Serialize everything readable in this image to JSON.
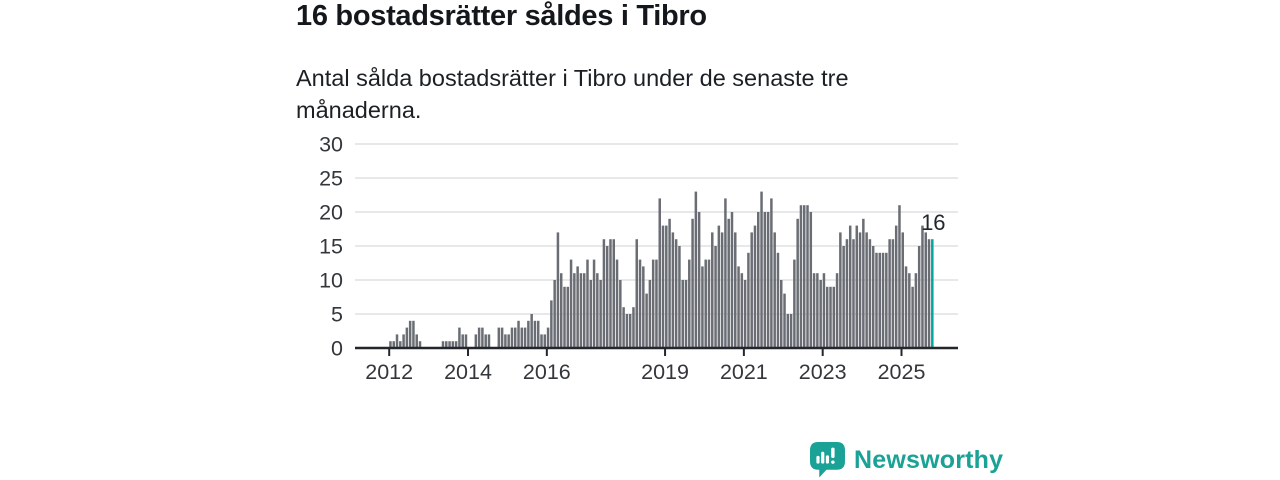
{
  "header": {
    "title": "16 bostadsrätter såldes i Tibro",
    "subtitle": "Antal sålda bostadsrätter i Tibro under de senaste tre månaderna."
  },
  "chart_data": {
    "type": "bar",
    "title": "16 bostadsrätter såldes i Tibro",
    "xlabel": "",
    "ylabel": "",
    "ylim": [
      0,
      30
    ],
    "y_ticks": [
      0,
      5,
      10,
      15,
      20,
      25,
      30
    ],
    "x_tick_labels": [
      "2012",
      "2014",
      "2016",
      "2019",
      "2021",
      "2023",
      "2025"
    ],
    "grid": true,
    "legend": "none",
    "start_month": "2011-04",
    "end_month": "2025-10",
    "values": [
      0,
      0,
      0,
      0,
      0,
      0,
      0,
      0,
      0,
      1,
      1,
      2,
      1,
      2,
      3,
      4,
      4,
      2,
      1,
      0,
      0,
      0,
      0,
      0,
      0,
      1,
      1,
      1,
      1,
      1,
      3,
      2,
      2,
      0,
      0,
      2,
      3,
      3,
      2,
      2,
      0,
      0,
      3,
      3,
      2,
      2,
      3,
      3,
      4,
      3,
      3,
      4,
      5,
      4,
      4,
      2,
      2,
      3,
      7,
      10,
      17,
      11,
      9,
      9,
      13,
      11,
      12,
      11,
      11,
      13,
      10,
      13,
      11,
      10,
      16,
      15,
      16,
      16,
      13,
      10,
      6,
      5,
      5,
      6,
      16,
      13,
      12,
      8,
      10,
      13,
      13,
      22,
      18,
      18,
      19,
      17,
      16,
      15,
      10,
      10,
      13,
      19,
      23,
      20,
      12,
      13,
      13,
      17,
      15,
      18,
      17,
      22,
      19,
      20,
      17,
      12,
      11,
      10,
      14,
      17,
      18,
      20,
      23,
      20,
      20,
      22,
      17,
      14,
      10,
      8,
      5,
      5,
      13,
      19,
      21,
      21,
      21,
      20,
      11,
      11,
      10,
      11,
      9,
      9,
      9,
      11,
      17,
      15,
      16,
      18,
      16,
      18,
      17,
      19,
      17,
      16,
      15,
      14,
      14,
      14,
      14,
      16,
      16,
      18,
      21,
      17,
      12,
      11,
      9,
      11,
      15,
      18,
      17,
      16,
      16
    ],
    "highlight": {
      "index": 174,
      "value": 16,
      "label": "16"
    }
  },
  "colors": {
    "bar": "#6a6e74",
    "highlight": "#00a79f",
    "grid": "#d9dbdd",
    "axis": "#23272d",
    "tick_text": "#33373c",
    "annotation_text": "#23272d",
    "brand": "#19a295"
  },
  "footer": {
    "brand": "Newsworthy",
    "logo_icon": "newsworthy-speech-bubble-chart-icon"
  }
}
